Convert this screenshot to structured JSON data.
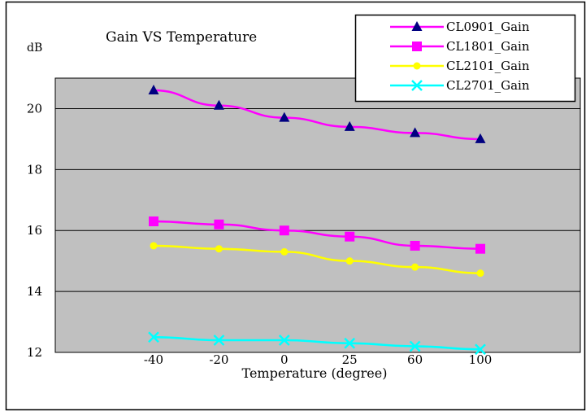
{
  "chart_data": {
    "type": "line",
    "title": "Gain VS Temperature",
    "ylabel": "dB",
    "xlabel": "Temperature (degree)",
    "categories": [
      "-40",
      "-20",
      "0",
      "25",
      "60",
      "100"
    ],
    "ylim": [
      12,
      21
    ],
    "yticks": [
      12,
      14,
      16,
      18,
      20
    ],
    "grid": true,
    "legend": "top-right",
    "plot_background": "#c0c0c0",
    "series": [
      {
        "name": "CL0901_Gain",
        "color": "#ff00ff",
        "marker": "triangle",
        "marker_color": "#000080",
        "values": [
          20.6,
          20.1,
          19.7,
          19.4,
          19.2,
          19.0
        ]
      },
      {
        "name": "CL1801_Gain",
        "color": "#ff00ff",
        "marker": "square",
        "marker_color": "#ff00ff",
        "values": [
          16.3,
          16.2,
          16.0,
          15.8,
          15.5,
          15.4
        ]
      },
      {
        "name": "CL2101_Gain",
        "color": "#ffff00",
        "marker": "circle",
        "marker_color": "#ffff00",
        "values": [
          15.5,
          15.4,
          15.3,
          15.0,
          14.8,
          14.6
        ]
      },
      {
        "name": "CL2701_Gain",
        "color": "#00ffff",
        "marker": "x",
        "marker_color": "#00ffff",
        "values": [
          12.5,
          12.4,
          12.4,
          12.3,
          12.2,
          12.1
        ]
      }
    ]
  }
}
